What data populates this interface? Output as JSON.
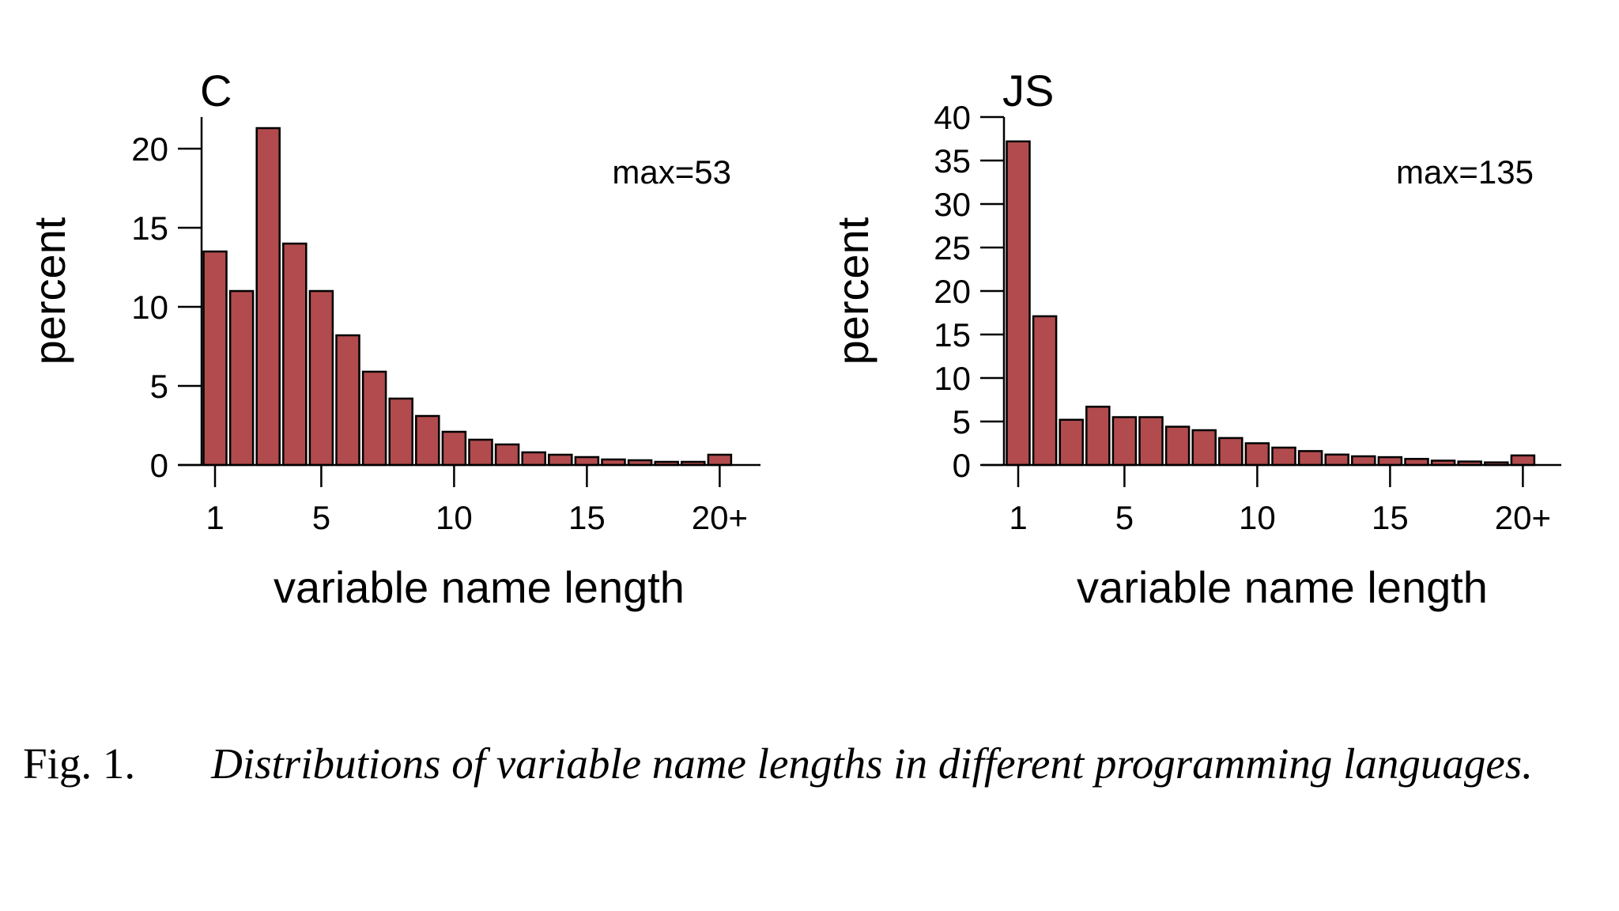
{
  "bar_color": "#b14b4d",
  "bar_outline_color": "#000000",
  "chart_data": [
    {
      "type": "bar",
      "title": "C",
      "annotation": "max=53",
      "xlabel": "variable name length",
      "ylabel": "percent",
      "categories": [
        "1",
        "2",
        "3",
        "4",
        "5",
        "6",
        "7",
        "8",
        "9",
        "10",
        "11",
        "12",
        "13",
        "14",
        "15",
        "16",
        "17",
        "18",
        "19",
        "20+"
      ],
      "values": [
        13.5,
        11,
        21.3,
        14,
        11,
        8.2,
        5.9,
        4.2,
        3.1,
        2.1,
        1.6,
        1.3,
        0.8,
        0.65,
        0.5,
        0.35,
        0.3,
        0.2,
        0.2,
        0.65
      ],
      "x_ticks": [
        "1",
        "5",
        "10",
        "15",
        "20+"
      ],
      "y_ticks": [
        "0",
        "5",
        "10",
        "15",
        "20"
      ],
      "ylim": [
        0,
        22
      ],
      "grid": false,
      "legend": "none"
    },
    {
      "type": "bar",
      "title": "JS",
      "annotation": "max=135",
      "xlabel": "variable name length",
      "ylabel": "percent",
      "categories": [
        "1",
        "2",
        "3",
        "4",
        "5",
        "6",
        "7",
        "8",
        "9",
        "10",
        "11",
        "12",
        "13",
        "14",
        "15",
        "16",
        "17",
        "18",
        "19",
        "20+"
      ],
      "values": [
        37.2,
        17.1,
        5.2,
        6.7,
        5.5,
        5.5,
        4.4,
        4,
        3.1,
        2.5,
        2,
        1.6,
        1.2,
        1,
        0.9,
        0.7,
        0.5,
        0.4,
        0.3,
        1.1
      ],
      "x_ticks": [
        "1",
        "5",
        "10",
        "15",
        "20+"
      ],
      "y_ticks": [
        "0",
        "5",
        "10",
        "15",
        "20",
        "25",
        "30",
        "35",
        "40"
      ],
      "ylim": [
        0,
        40
      ],
      "grid": false,
      "legend": "none"
    }
  ],
  "caption": {
    "label": "Fig. 1.",
    "text": "Distributions of variable name lengths in different programming languages."
  }
}
